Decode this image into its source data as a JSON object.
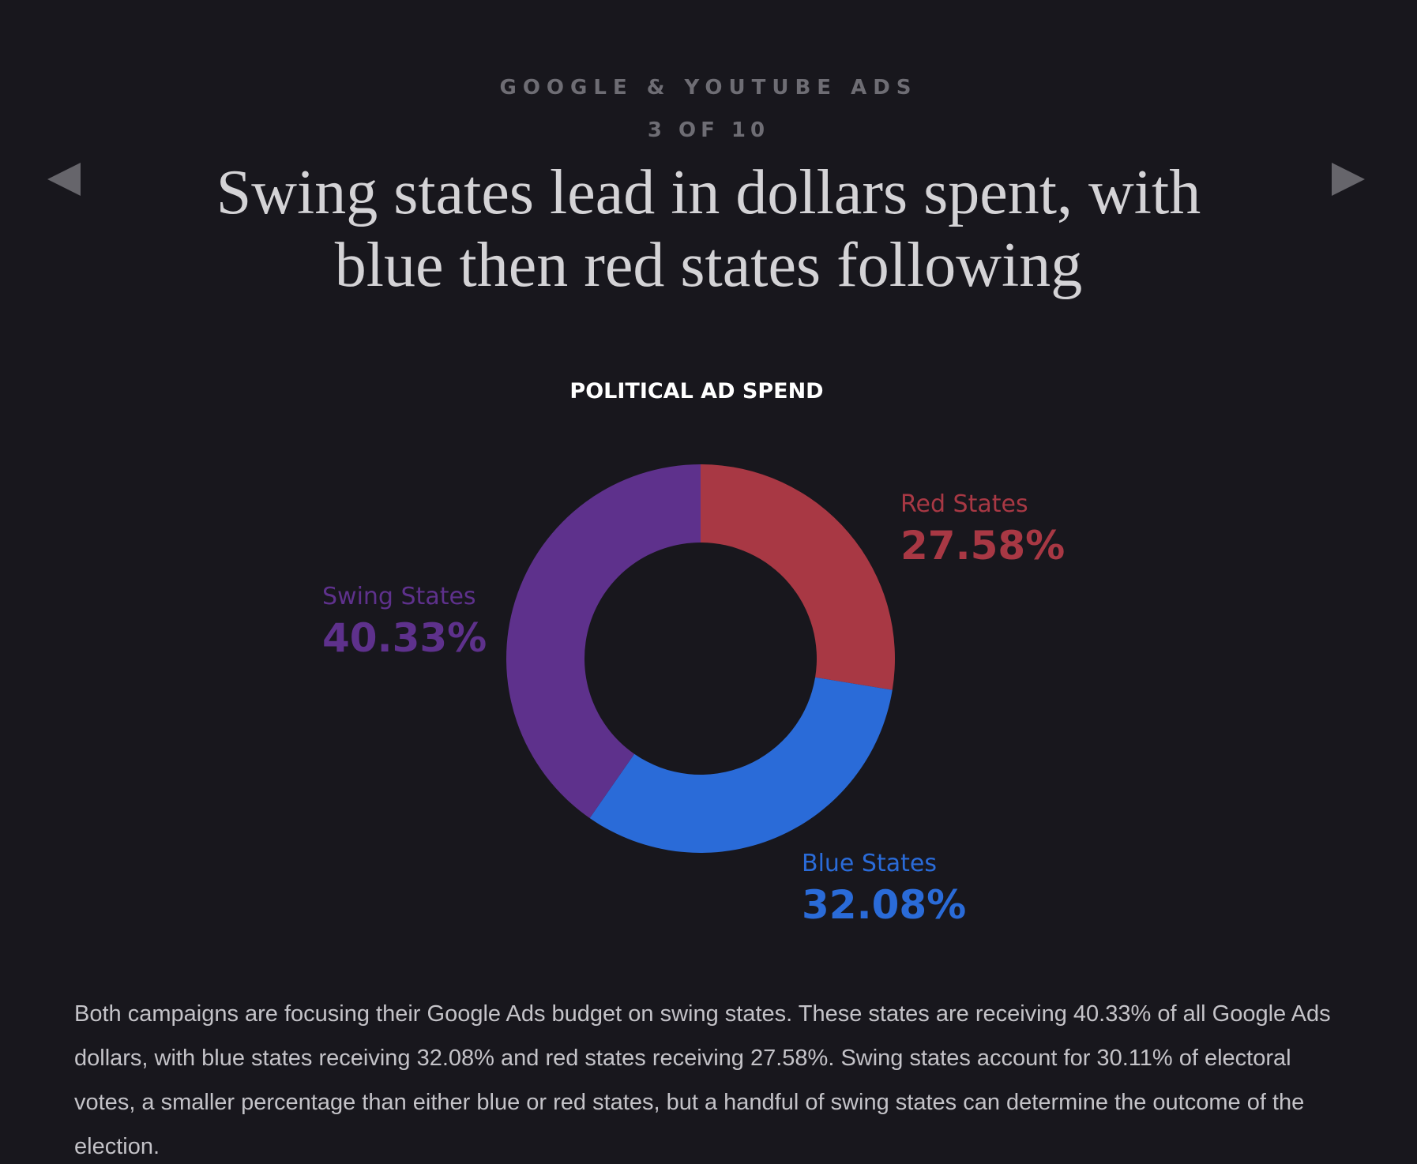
{
  "header": {
    "section_label": "GOOGLE & YOUTUBE ADS",
    "counter": "3 OF 10",
    "headline": "Swing states lead in dollars spent, with blue then red states following"
  },
  "nav": {
    "prev_icon": "triangle-left-icon",
    "next_icon": "triangle-right-icon"
  },
  "chart_data": {
    "type": "pie",
    "style": "donut",
    "title": "POLITICAL AD SPEND",
    "slices": [
      {
        "label": "Red States",
        "value": 27.58,
        "value_text": "27.58%",
        "color": "#a83844"
      },
      {
        "label": "Blue States",
        "value": 32.08,
        "value_text": "32.08%",
        "color": "#2a6bd8"
      },
      {
        "label": "Swing States",
        "value": 40.33,
        "value_text": "40.33%",
        "color": "#5e318c"
      }
    ]
  },
  "caption": "Both campaigns are focusing their Google Ads budget on swing states. These states are receiving 40.33% of all Google Ads dollars, with blue states receiving 32.08% and red states receiving 27.58%. Swing states account for 30.11% of electoral votes, a smaller percentage than either blue or red states, but a handful of swing states can determine the outcome of the election."
}
